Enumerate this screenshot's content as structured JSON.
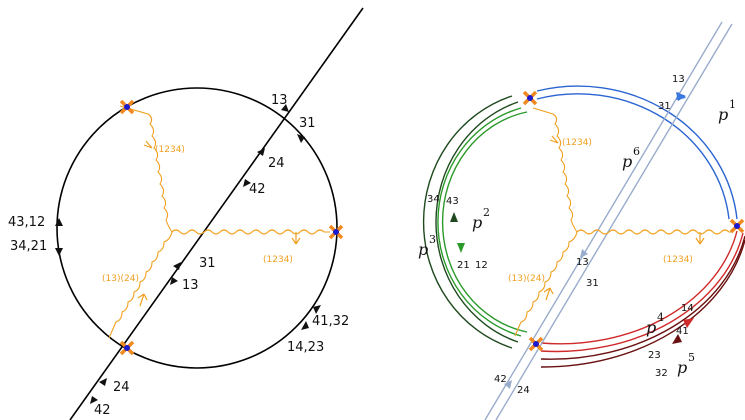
{
  "left_diagram": {
    "labels": {
      "l13": "13",
      "l31a": "31",
      "l24a": "24",
      "l42a": "42",
      "l4312": "43,12",
      "l3421": "34,21",
      "l31b": "31",
      "l13b": "13",
      "l4132": "41,32",
      "l1423": "14,23",
      "l24b": "24",
      "l42b": "42",
      "perm_top": "(1234)",
      "perm_right": "(1234)",
      "perm_bottom": "(13)(24)"
    }
  },
  "right_diagram": {
    "labels": {
      "r13a": "13",
      "r31a": "31",
      "r3443": "34",
      "r43": "43",
      "r21": "21",
      "r12": "12",
      "r13b": "13",
      "r31b": "31",
      "r14": "14",
      "r41": "41",
      "r23": "23",
      "r32": "32",
      "r42": "42",
      "r24": "24",
      "perm_top": "(1234)",
      "perm_right": "(1234)",
      "perm_bottom": "(13)(24)"
    },
    "paths": [
      {
        "name": "p",
        "sup": "1"
      },
      {
        "name": "p",
        "sup": "2"
      },
      {
        "name": "p",
        "sup": "3"
      },
      {
        "name": "p",
        "sup": "4"
      },
      {
        "name": "p",
        "sup": "5"
      },
      {
        "name": "p",
        "sup": "6"
      }
    ],
    "colors": {
      "p1": "#2a64d0",
      "p2": "#2a9a2a",
      "p3": "#1f4a1f",
      "p4": "#d02a2a",
      "p5": "#6a1010",
      "p6": "#9aaccc",
      "photon": "#f0a020",
      "vertex_cross": "#f08a20",
      "vertex_dot": "#1a1ad0"
    }
  }
}
